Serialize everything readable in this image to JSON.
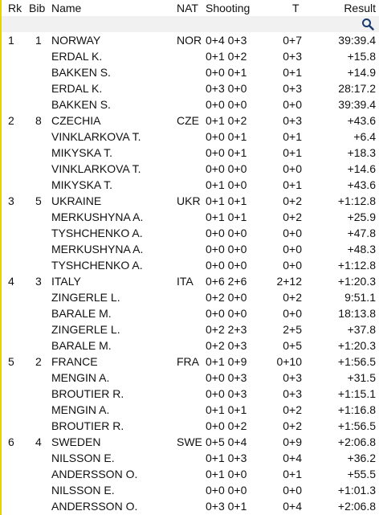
{
  "headers": {
    "rk": "Rk",
    "bib": "Bib",
    "name": "Name",
    "nat": "NAT",
    "shooting": "Shooting",
    "t": "T",
    "result": "Result"
  },
  "search": {
    "icon": "search-icon"
  },
  "rows": [
    {
      "rk": "1",
      "bib": "1",
      "name": "NORWAY",
      "nat": "NOR",
      "shooting": "0+4 0+3",
      "t": "0+7",
      "result": "39:39.4"
    },
    {
      "rk": "",
      "bib": "",
      "name": "ERDAL K.",
      "nat": "",
      "shooting": "0+1 0+2",
      "t": "0+3",
      "result": "+15.8"
    },
    {
      "rk": "",
      "bib": "",
      "name": "BAKKEN S.",
      "nat": "",
      "shooting": "0+0 0+1",
      "t": "0+1",
      "result": "+14.9"
    },
    {
      "rk": "",
      "bib": "",
      "name": "ERDAL K.",
      "nat": "",
      "shooting": "0+3 0+0",
      "t": "0+3",
      "result": "28:17.2"
    },
    {
      "rk": "",
      "bib": "",
      "name": "BAKKEN S.",
      "nat": "",
      "shooting": "0+0 0+0",
      "t": "0+0",
      "result": "39:39.4"
    },
    {
      "rk": "2",
      "bib": "8",
      "name": "CZECHIA",
      "nat": "CZE",
      "shooting": "0+1 0+2",
      "t": "0+3",
      "result": "+43.6"
    },
    {
      "rk": "",
      "bib": "",
      "name": "VINKLARKOVA T.",
      "nat": "",
      "shooting": "0+0 0+1",
      "t": "0+1",
      "result": "+6.4"
    },
    {
      "rk": "",
      "bib": "",
      "name": "MIKYSKA T.",
      "nat": "",
      "shooting": "0+0 0+1",
      "t": "0+1",
      "result": "+18.3"
    },
    {
      "rk": "",
      "bib": "",
      "name": "VINKLARKOVA T.",
      "nat": "",
      "shooting": "0+0 0+0",
      "t": "0+0",
      "result": "+14.6"
    },
    {
      "rk": "",
      "bib": "",
      "name": "MIKYSKA T.",
      "nat": "",
      "shooting": "0+1 0+0",
      "t": "0+1",
      "result": "+43.6"
    },
    {
      "rk": "3",
      "bib": "5",
      "name": "UKRAINE",
      "nat": "UKR",
      "shooting": "0+1 0+1",
      "t": "0+2",
      "result": "+1:12.8"
    },
    {
      "rk": "",
      "bib": "",
      "name": "MERKUSHYNA A.",
      "nat": "",
      "shooting": "0+1 0+1",
      "t": "0+2",
      "result": "+25.9"
    },
    {
      "rk": "",
      "bib": "",
      "name": "TYSHCHENKO A.",
      "nat": "",
      "shooting": "0+0 0+0",
      "t": "0+0",
      "result": "+47.8"
    },
    {
      "rk": "",
      "bib": "",
      "name": "MERKUSHYNA A.",
      "nat": "",
      "shooting": "0+0 0+0",
      "t": "0+0",
      "result": "+48.3"
    },
    {
      "rk": "",
      "bib": "",
      "name": "TYSHCHENKO A.",
      "nat": "",
      "shooting": "0+0 0+0",
      "t": "0+0",
      "result": "+1:12.8"
    },
    {
      "rk": "4",
      "bib": "3",
      "name": "ITALY",
      "nat": "ITA",
      "shooting": "0+6 2+6",
      "t": "2+12",
      "result": "+1:20.3"
    },
    {
      "rk": "",
      "bib": "",
      "name": "ZINGERLE L.",
      "nat": "",
      "shooting": "0+2 0+0",
      "t": "0+2",
      "result": "9:51.1"
    },
    {
      "rk": "",
      "bib": "",
      "name": "BARALE M.",
      "nat": "",
      "shooting": "0+0 0+0",
      "t": "0+0",
      "result": "18:13.8"
    },
    {
      "rk": "",
      "bib": "",
      "name": "ZINGERLE L.",
      "nat": "",
      "shooting": "0+2 2+3",
      "t": "2+5",
      "result": "+37.8"
    },
    {
      "rk": "",
      "bib": "",
      "name": "BARALE M.",
      "nat": "",
      "shooting": "0+2 0+3",
      "t": "0+5",
      "result": "+1:20.3"
    },
    {
      "rk": "5",
      "bib": "2",
      "name": "FRANCE",
      "nat": "FRA",
      "shooting": "0+1 0+9",
      "t": "0+10",
      "result": "+1:56.5"
    },
    {
      "rk": "",
      "bib": "",
      "name": "MENGIN A.",
      "nat": "",
      "shooting": "0+0 0+3",
      "t": "0+3",
      "result": "+31.5"
    },
    {
      "rk": "",
      "bib": "",
      "name": "BROUTIER R.",
      "nat": "",
      "shooting": "0+0 0+3",
      "t": "0+3",
      "result": "+1:15.1"
    },
    {
      "rk": "",
      "bib": "",
      "name": "MENGIN A.",
      "nat": "",
      "shooting": "0+1 0+1",
      "t": "0+2",
      "result": "+1:16.8"
    },
    {
      "rk": "",
      "bib": "",
      "name": "BROUTIER R.",
      "nat": "",
      "shooting": "0+0 0+2",
      "t": "0+2",
      "result": "+1:56.5"
    },
    {
      "rk": "6",
      "bib": "4",
      "name": "SWEDEN",
      "nat": "SWE",
      "shooting": "0+5 0+4",
      "t": "0+9",
      "result": "+2:06.8"
    },
    {
      "rk": "",
      "bib": "",
      "name": "NILSSON E.",
      "nat": "",
      "shooting": "0+1 0+3",
      "t": "0+4",
      "result": "+36.2"
    },
    {
      "rk": "",
      "bib": "",
      "name": "ANDERSSON O.",
      "nat": "",
      "shooting": "0+1 0+0",
      "t": "0+1",
      "result": "+55.5"
    },
    {
      "rk": "",
      "bib": "",
      "name": "NILSSON E.",
      "nat": "",
      "shooting": "0+0 0+0",
      "t": "0+0",
      "result": "+1:01.3"
    },
    {
      "rk": "",
      "bib": "",
      "name": "ANDERSSON O.",
      "nat": "",
      "shooting": "0+3 0+1",
      "t": "0+4",
      "result": "+2:06.8"
    }
  ]
}
